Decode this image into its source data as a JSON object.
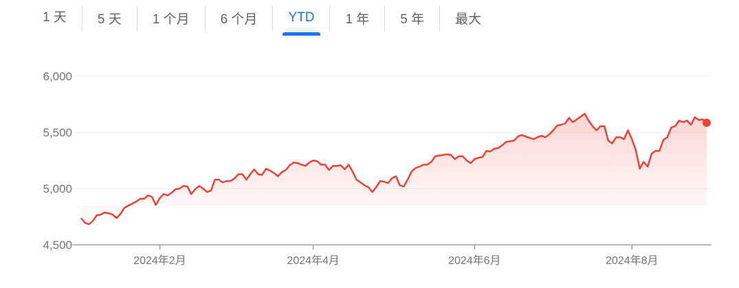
{
  "tabs": [
    {
      "label": "1 天",
      "active": false
    },
    {
      "label": "5 天",
      "active": false
    },
    {
      "label": "1 个月",
      "active": false
    },
    {
      "label": "6 个月",
      "active": false
    },
    {
      "label": "YTD",
      "active": true
    },
    {
      "label": "1 年",
      "active": false
    },
    {
      "label": "5 年",
      "active": false
    },
    {
      "label": "最大",
      "active": false
    }
  ],
  "colors": {
    "line": "#ea4335",
    "accent": "#1a73e8",
    "text": "#5f6368"
  },
  "chart_data": {
    "type": "area",
    "title": "",
    "xlabel": "",
    "ylabel": "",
    "ylim": [
      4500,
      6000
    ],
    "grid": true,
    "y_ticks": [
      {
        "value": 4500,
        "label": "4,500"
      },
      {
        "value": 5000,
        "label": "5,000"
      },
      {
        "value": 5500,
        "label": "5,500"
      },
      {
        "value": 6000,
        "label": "6,000"
      }
    ],
    "x_ticks": [
      {
        "index": 20,
        "label": "2024年2月"
      },
      {
        "index": 59,
        "label": "2024年4月"
      },
      {
        "index": 100,
        "label": "2024年6月"
      },
      {
        "index": 140,
        "label": "2024年8月"
      }
    ],
    "values": [
      4738,
      4695,
      4683,
      4713,
      4762,
      4768,
      4787,
      4780,
      4768,
      4738,
      4774,
      4829,
      4848,
      4866,
      4884,
      4909,
      4909,
      4939,
      4927,
      4854,
      4915,
      4951,
      4939,
      4963,
      4994,
      5000,
      5024,
      5018,
      4951,
      4994,
      5024,
      5000,
      4970,
      4982,
      5079,
      5079,
      5055,
      5067,
      5067,
      5091,
      5128,
      5128,
      5079,
      5128,
      5171,
      5128,
      5122,
      5177,
      5159,
      5140,
      5110,
      5146,
      5165,
      5207,
      5232,
      5226,
      5213,
      5201,
      5232,
      5250,
      5244,
      5213,
      5213,
      5165,
      5201,
      5201,
      5207,
      5171,
      5213,
      5152,
      5079,
      5055,
      5030,
      5012,
      4970,
      5012,
      5067,
      5061,
      5049,
      5091,
      5110,
      5030,
      5018,
      5079,
      5152,
      5183,
      5195,
      5213,
      5213,
      5238,
      5287,
      5293,
      5299,
      5305,
      5299,
      5262,
      5287,
      5287,
      5250,
      5226,
      5262,
      5274,
      5280,
      5335,
      5329,
      5354,
      5360,
      5384,
      5415,
      5421,
      5427,
      5463,
      5476,
      5463,
      5451,
      5439,
      5457,
      5470,
      5457,
      5482,
      5518,
      5561,
      5567,
      5579,
      5628,
      5591,
      5616,
      5640,
      5665,
      5604,
      5555,
      5518,
      5555,
      5555,
      5427,
      5402,
      5457,
      5457,
      5439,
      5518,
      5439,
      5341,
      5177,
      5238,
      5195,
      5311,
      5335,
      5335,
      5433,
      5457,
      5543,
      5555,
      5604,
      5591,
      5604,
      5567,
      5634,
      5610,
      5616,
      5585
    ]
  }
}
